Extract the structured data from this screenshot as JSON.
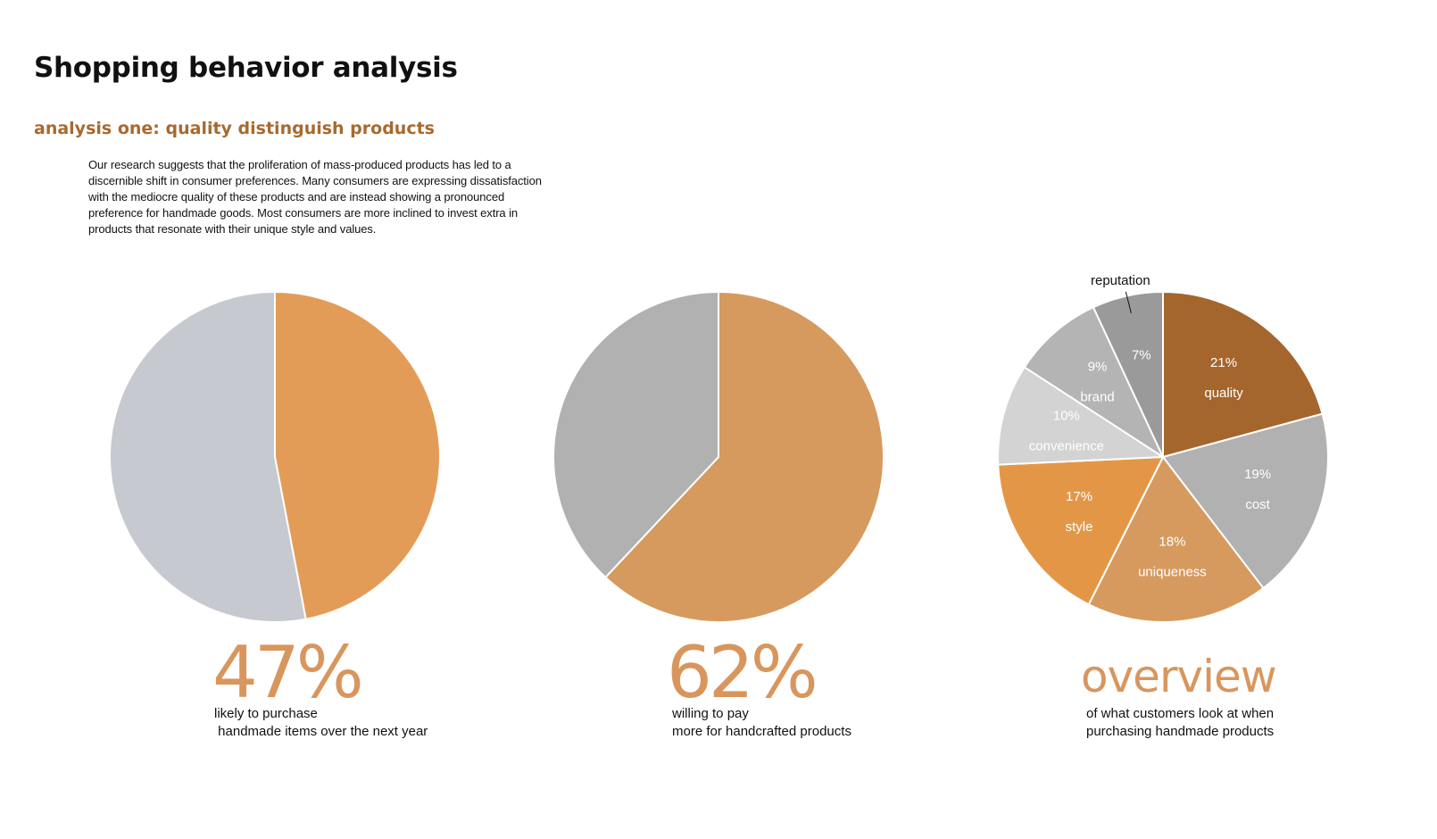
{
  "page": {
    "title": "Shopping behavior analysis",
    "subtitle": "analysis one: quality distinguish products",
    "intro": "Our research suggests that the proliferation of mass-produced products has led to a discernible shift in consumer preferences. Many consumers are expressing dissatisfaction with the mediocre quality of these products and are instead showing a pronounced preference for handmade goods. Most consumers are more inclined to invest extra in products that resonate with their unique style and values."
  },
  "colors": {
    "accent_text": "#a8692f",
    "big_number": "#d8965d"
  },
  "chart_data": [
    {
      "type": "pie",
      "big_label": "47%",
      "caption_line1": "likely to purchase",
      "caption_line2": " handmade items over the next year",
      "slices": [
        {
          "label": "",
          "value": 47,
          "color": "#e39c57"
        },
        {
          "label": "",
          "value": 53,
          "color": "#c6c9cf"
        }
      ]
    },
    {
      "type": "pie",
      "big_label": "62%",
      "caption_line1": "willing to pay",
      "caption_line2": "more for handcrafted products",
      "slices": [
        {
          "label": "",
          "value": 62,
          "color": "#d69a5f"
        },
        {
          "label": "",
          "value": 38,
          "color": "#b1b1b1"
        }
      ]
    },
    {
      "type": "pie",
      "big_label": "overview",
      "caption_line1": "of what customers look at when",
      "caption_line2": "purchasing handmade products",
      "slices": [
        {
          "label": "quality",
          "pct_label": "21%",
          "value": 21,
          "color": "#a5662d"
        },
        {
          "label": "cost",
          "pct_label": "19%",
          "value": 19,
          "color": "#b1b1b1"
        },
        {
          "label": "uniqueness",
          "pct_label": "18%",
          "value": 18,
          "color": "#d69a5f"
        },
        {
          "label": "style",
          "pct_label": "17%",
          "value": 17,
          "color": "#e39746"
        },
        {
          "label": "convenience",
          "pct_label": "10%",
          "value": 10,
          "color": "#d3d3d3"
        },
        {
          "label": "brand",
          "pct_label": "9%",
          "value": 9,
          "color": "#b4b4b4"
        },
        {
          "label": "",
          "pct_label": "7%",
          "value": 7,
          "color": "#9a9a9a",
          "callout": "reputation"
        }
      ]
    }
  ]
}
